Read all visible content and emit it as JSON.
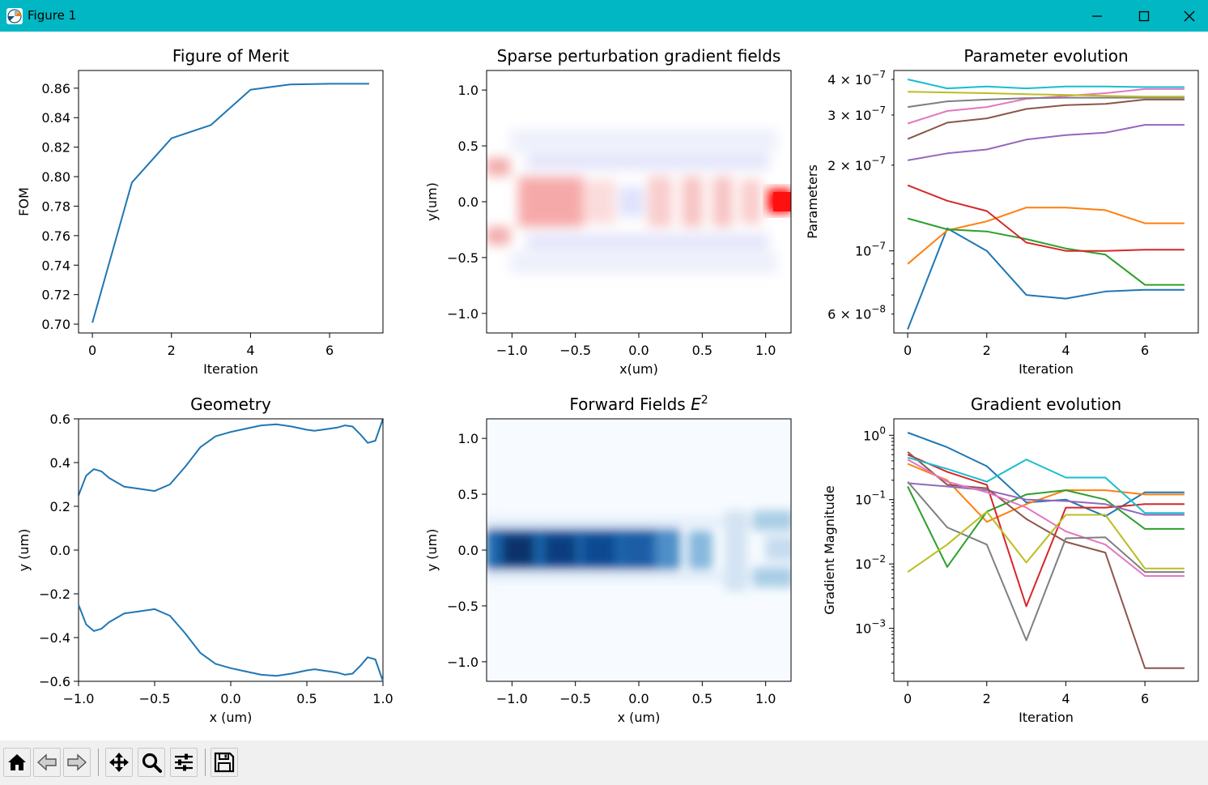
{
  "window": {
    "title": "Figure 1"
  },
  "toolbar": {
    "buttons": [
      {
        "name": "home-button",
        "icon": "home-icon"
      },
      {
        "name": "back-button",
        "icon": "arrow-left-icon"
      },
      {
        "name": "forward-button",
        "icon": "arrow-right-icon"
      },
      {
        "name": "pan-button",
        "icon": "move-icon"
      },
      {
        "name": "zoom-button",
        "icon": "magnifier-icon"
      },
      {
        "name": "configure-subplots-button",
        "icon": "sliders-icon"
      },
      {
        "name": "save-button",
        "icon": "floppy-disk-icon"
      }
    ]
  },
  "colors": [
    "#1f77b4",
    "#ff7f0e",
    "#2ca02c",
    "#d62728",
    "#9467bd",
    "#8c564b",
    "#e377c2",
    "#7f7f7f",
    "#bcbd22",
    "#17becf"
  ],
  "chart_data": [
    {
      "id": "fom",
      "type": "line",
      "title": "Figure of Merit",
      "xlabel": "Iteration",
      "ylabel": "FOM",
      "xlim": [
        -0.35,
        7.35
      ],
      "ylim": [
        0.694,
        0.872
      ],
      "xticks": [
        0,
        2,
        4,
        6
      ],
      "xtick_labels": [
        "0",
        "2",
        "4",
        "6"
      ],
      "yticks": [
        0.7,
        0.72,
        0.74,
        0.76,
        0.78,
        0.8,
        0.82,
        0.84,
        0.86
      ],
      "ytick_labels": [
        "0.70",
        "0.72",
        "0.74",
        "0.76",
        "0.78",
        "0.80",
        "0.82",
        "0.84",
        "0.86"
      ],
      "series": [
        {
          "x": [
            0,
            1,
            2,
            3,
            4,
            5,
            6,
            7
          ],
          "values": [
            0.701,
            0.796,
            0.826,
            0.835,
            0.859,
            0.8625,
            0.863,
            0.863
          ]
        }
      ]
    },
    {
      "id": "gradient-fields",
      "type": "heatmap",
      "title": "Sparse perturbation gradient fields",
      "xlabel": "x(um)",
      "ylabel": "y(um)",
      "colormap": "bwr",
      "xlim": [
        -1.2,
        1.2
      ],
      "ylim": [
        -1.175,
        1.175
      ],
      "xticks": [
        -1.0,
        -0.5,
        0.0,
        0.5,
        1.0
      ],
      "xtick_labels": [
        "−1.0",
        "−0.5",
        "0.0",
        "0.5",
        "1.0"
      ],
      "yticks": [
        -1.0,
        -0.5,
        0.0,
        0.5,
        1.0
      ],
      "ytick_labels": [
        "−1.0",
        "−0.5",
        "0.0",
        "0.5",
        "1.0"
      ]
    },
    {
      "id": "parameter-evolution",
      "type": "line",
      "title": "Parameter evolution",
      "xlabel": "Iteration",
      "ylabel": "Parameters",
      "yscale": "log",
      "xlim": [
        -0.35,
        7.35
      ],
      "ylim": [
        5.15e-08,
        4.3e-07
      ],
      "xticks": [
        0,
        2,
        4,
        6
      ],
      "xtick_labels": [
        "0",
        "2",
        "4",
        "6"
      ],
      "yticks_major": [
        1e-07
      ],
      "ytick_major_labels": [
        {
          "base": "10",
          "exp": "−7"
        }
      ],
      "yticks_minor": [
        6e-08,
        2e-07,
        3e-07,
        4e-07
      ],
      "ytick_minor_labels": [
        {
          "mant": "6 × 10",
          "exp": "−8"
        },
        {
          "mant": "2 × 10",
          "exp": "−7"
        },
        {
          "mant": "3 × 10",
          "exp": "−7"
        },
        {
          "mant": "4 × 10",
          "exp": "−7"
        }
      ],
      "series": [
        {
          "color": "#1f77b4",
          "x": [
            0,
            1,
            2,
            3,
            4,
            5,
            6,
            7
          ],
          "values": [
            5.3e-08,
            1.2e-07,
            1e-07,
            7e-08,
            6.8e-08,
            7.2e-08,
            7.3e-08,
            7.3e-08
          ]
        },
        {
          "color": "#ff7f0e",
          "x": [
            0,
            1,
            2,
            3,
            4,
            5,
            6,
            7
          ],
          "values": [
            9e-08,
            1.18e-07,
            1.27e-07,
            1.42e-07,
            1.42e-07,
            1.39e-07,
            1.25e-07,
            1.25e-07
          ]
        },
        {
          "color": "#2ca02c",
          "x": [
            0,
            1,
            2,
            3,
            4,
            5,
            6,
            7
          ],
          "values": [
            1.3e-07,
            1.19e-07,
            1.17e-07,
            1.1e-07,
            1.02e-07,
            9.7e-08,
            7.6e-08,
            7.6e-08
          ]
        },
        {
          "color": "#d62728",
          "x": [
            0,
            1,
            2,
            3,
            4,
            5,
            6,
            7
          ],
          "values": [
            1.7e-07,
            1.5e-07,
            1.38e-07,
            1.07e-07,
            1e-07,
            1e-07,
            1.01e-07,
            1.01e-07
          ]
        },
        {
          "color": "#9467bd",
          "x": [
            0,
            1,
            2,
            3,
            4,
            5,
            6,
            7
          ],
          "values": [
            2.08e-07,
            2.2e-07,
            2.27e-07,
            2.46e-07,
            2.55e-07,
            2.6e-07,
            2.77e-07,
            2.77e-07
          ]
        },
        {
          "color": "#8c564b",
          "x": [
            0,
            1,
            2,
            3,
            4,
            5,
            6,
            7
          ],
          "values": [
            2.47e-07,
            2.82e-07,
            2.92e-07,
            3.15e-07,
            3.25e-07,
            3.28e-07,
            3.4e-07,
            3.4e-07
          ]
        },
        {
          "color": "#e377c2",
          "x": [
            0,
            1,
            2,
            3,
            4,
            5,
            6,
            7
          ],
          "values": [
            2.8e-07,
            3.1e-07,
            3.2e-07,
            3.42e-07,
            3.5e-07,
            3.58e-07,
            3.7e-07,
            3.7e-07
          ]
        },
        {
          "color": "#7f7f7f",
          "x": [
            0,
            1,
            2,
            3,
            4,
            5,
            6,
            7
          ],
          "values": [
            3.2e-07,
            3.35e-07,
            3.4e-07,
            3.44e-07,
            3.45e-07,
            3.45e-07,
            3.45e-07,
            3.45e-07
          ]
        },
        {
          "color": "#bcbd22",
          "x": [
            0,
            1,
            2,
            3,
            4,
            5,
            6,
            7
          ],
          "values": [
            3.62e-07,
            3.6e-07,
            3.58e-07,
            3.55e-07,
            3.53e-07,
            3.5e-07,
            3.48e-07,
            3.48e-07
          ]
        },
        {
          "color": "#17becf",
          "x": [
            0,
            1,
            2,
            3,
            4,
            5,
            6,
            7
          ],
          "values": [
            4e-07,
            3.72e-07,
            3.78e-07,
            3.72e-07,
            3.78e-07,
            3.78e-07,
            3.76e-07,
            3.76e-07
          ]
        }
      ]
    },
    {
      "id": "geometry",
      "type": "line",
      "title": "Geometry",
      "xlabel": "x (um)",
      "ylabel": "y (um)",
      "xlim": [
        -1.0,
        1.0
      ],
      "ylim": [
        -0.6,
        0.6
      ],
      "xticks": [
        -1.0,
        -0.5,
        0.0,
        0.5,
        1.0
      ],
      "xtick_labels": [
        "−1.0",
        "−0.5",
        "0.0",
        "0.5",
        "1.0"
      ],
      "yticks": [
        -0.6,
        -0.4,
        -0.2,
        0.0,
        0.2,
        0.4,
        0.6
      ],
      "ytick_labels": [
        "−0.6",
        "−0.4",
        "−0.2",
        "0.0",
        "0.2",
        "0.4",
        "0.6"
      ],
      "series": [
        {
          "x": [
            -1.0,
            -0.95,
            -0.9,
            -0.85,
            -0.8,
            -0.7,
            -0.6,
            -0.5,
            -0.4,
            -0.3,
            -0.2,
            -0.1,
            0.0,
            0.1,
            0.2,
            0.3,
            0.4,
            0.5,
            0.55,
            0.6,
            0.7,
            0.75,
            0.8,
            0.85,
            0.9,
            0.95,
            1.0
          ],
          "values": [
            0.25,
            0.34,
            0.37,
            0.36,
            0.33,
            0.29,
            0.28,
            0.27,
            0.3,
            0.38,
            0.47,
            0.52,
            0.54,
            0.555,
            0.57,
            0.575,
            0.565,
            0.55,
            0.545,
            0.55,
            0.56,
            0.57,
            0.565,
            0.53,
            0.49,
            0.5,
            0.6
          ]
        }
      ]
    },
    {
      "id": "forward-fields",
      "type": "heatmap",
      "title": "Forward Fields E²",
      "xlabel": "x (um)",
      "ylabel": "y (um)",
      "colormap": "Blues",
      "xlim": [
        -1.2,
        1.2
      ],
      "ylim": [
        -1.175,
        1.175
      ],
      "xticks": [
        -1.0,
        -0.5,
        0.0,
        0.5,
        1.0
      ],
      "xtick_labels": [
        "−1.0",
        "−0.5",
        "0.0",
        "0.5",
        "1.0"
      ],
      "yticks": [
        -1.0,
        -0.5,
        0.0,
        0.5,
        1.0
      ],
      "ytick_labels": [
        "−1.0",
        "−0.5",
        "0.0",
        "0.5",
        "1.0"
      ]
    },
    {
      "id": "gradient-evolution",
      "type": "line",
      "title": "Gradient evolution",
      "xlabel": "Iteration",
      "ylabel": "Gradient Magnitude",
      "yscale": "log",
      "xlim": [
        -0.35,
        7.35
      ],
      "ylim": [
        0.00015,
        1.8
      ],
      "xticks": [
        0,
        2,
        4,
        6
      ],
      "xtick_labels": [
        "0",
        "2",
        "4",
        "6"
      ],
      "yticks_major": [
        0.001,
        0.01,
        0.1,
        1.0
      ],
      "ytick_major_labels": [
        {
          "base": "10",
          "exp": "−3"
        },
        {
          "base": "10",
          "exp": "−2"
        },
        {
          "base": "10",
          "exp": "−1"
        },
        {
          "base": "10",
          "exp": "0"
        }
      ],
      "series": [
        {
          "color": "#1f77b4",
          "x": [
            0,
            1,
            2,
            3,
            4,
            5,
            6,
            7
          ],
          "values": [
            1.1,
            0.65,
            0.33,
            0.09,
            0.1,
            0.055,
            0.13,
            0.13
          ]
        },
        {
          "color": "#ff7f0e",
          "x": [
            0,
            1,
            2,
            3,
            4,
            5,
            6,
            7
          ],
          "values": [
            0.36,
            0.2,
            0.045,
            0.085,
            0.14,
            0.14,
            0.12,
            0.12
          ]
        },
        {
          "color": "#2ca02c",
          "x": [
            0,
            1,
            2,
            3,
            4,
            5,
            6,
            7
          ],
          "values": [
            0.16,
            0.009,
            0.065,
            0.12,
            0.14,
            0.1,
            0.035,
            0.035
          ]
        },
        {
          "color": "#d62728",
          "x": [
            0,
            1,
            2,
            3,
            4,
            5,
            6,
            7
          ],
          "values": [
            0.5,
            0.27,
            0.17,
            0.0022,
            0.075,
            0.075,
            0.085,
            0.085
          ]
        },
        {
          "color": "#9467bd",
          "x": [
            0,
            1,
            2,
            3,
            4,
            5,
            6,
            7
          ],
          "values": [
            0.18,
            0.16,
            0.14,
            0.1,
            0.095,
            0.085,
            0.058,
            0.058
          ]
        },
        {
          "color": "#8c564b",
          "x": [
            0,
            1,
            2,
            3,
            4,
            5,
            6,
            7
          ],
          "values": [
            0.55,
            0.17,
            0.15,
            0.05,
            0.022,
            0.015,
            0.00024,
            0.00024
          ]
        },
        {
          "color": "#e377c2",
          "x": [
            0,
            1,
            2,
            3,
            4,
            5,
            6,
            7
          ],
          "values": [
            0.42,
            0.19,
            0.13,
            0.075,
            0.032,
            0.02,
            0.0065,
            0.0065
          ]
        },
        {
          "color": "#7f7f7f",
          "x": [
            0,
            1,
            2,
            3,
            4,
            5,
            6,
            7
          ],
          "values": [
            0.19,
            0.037,
            0.02,
            0.00065,
            0.025,
            0.026,
            0.0075,
            0.0075
          ]
        },
        {
          "color": "#bcbd22",
          "x": [
            0,
            1,
            2,
            3,
            4,
            5,
            6,
            7
          ],
          "values": [
            0.0075,
            0.02,
            0.065,
            0.0105,
            0.058,
            0.058,
            0.0085,
            0.0085
          ]
        },
        {
          "color": "#17becf",
          "x": [
            0,
            1,
            2,
            3,
            4,
            5,
            6,
            7
          ],
          "values": [
            0.45,
            0.3,
            0.19,
            0.42,
            0.22,
            0.22,
            0.062,
            0.062
          ]
        }
      ]
    }
  ]
}
